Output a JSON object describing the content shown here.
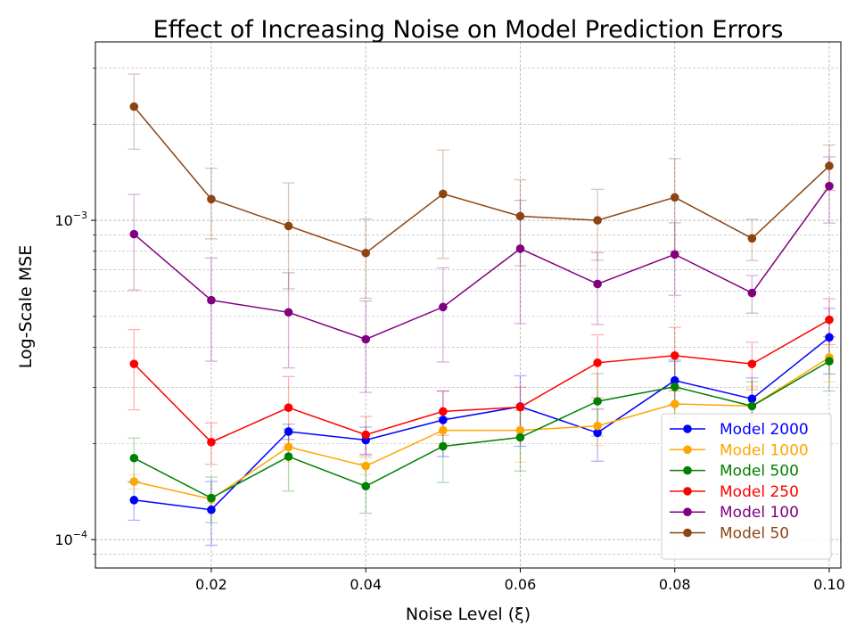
{
  "chart_data": {
    "type": "line",
    "title": "Effect of Increasing Noise on Model Prediction Errors",
    "xlabel": "Noise Level (ξ)",
    "ylabel": "Log-Scale MSE",
    "yscale": "log",
    "xlim": [
      0.005,
      0.1015
    ],
    "ylim": [
      8.15e-05,
      0.00362
    ],
    "xticks": [
      0.02,
      0.04,
      0.06,
      0.08,
      0.1
    ],
    "xtick_labels": [
      "0.02",
      "0.04",
      "0.06",
      "0.08",
      "0.10"
    ],
    "ytick_major": [
      0.0001,
      0.001
    ],
    "ytick_labels": [
      {
        "base": "10",
        "exp": "−4"
      },
      {
        "base": "10",
        "exp": "−3"
      }
    ],
    "grid": true,
    "legend_position": "lower right",
    "x": [
      0.01,
      0.02,
      0.03,
      0.04,
      0.05,
      0.06,
      0.07,
      0.08,
      0.09,
      0.1
    ],
    "series": [
      {
        "name": "Model 2000",
        "color": "#0000ff",
        "values": [
          0.000133,
          0.000124,
          0.000218,
          0.000205,
          0.000237,
          0.000261,
          0.000216,
          0.000315,
          0.000276,
          0.00043
        ],
        "errors": [
          1.8e-05,
          2.8e-05,
          1.2e-05,
          2e-05,
          5.5e-05,
          6.5e-05,
          4e-05,
          5e-05,
          4.5e-05,
          0.0001
        ]
      },
      {
        "name": "Model 1000",
        "color": "#ffa500",
        "values": [
          0.000152,
          0.000134,
          0.000195,
          0.00017,
          0.00022,
          0.00022,
          0.000227,
          0.000266,
          0.000262,
          0.000372
        ],
        "errors": [
          8e-06,
          4e-06,
          2e-05,
          1e-05,
          2e-05,
          4.5e-05,
          3e-05,
          3e-05,
          4e-05,
          6e-05
        ]
      },
      {
        "name": "Model 500",
        "color": "#008000",
        "values": [
          0.00018,
          0.000135,
          0.000182,
          0.000147,
          0.000196,
          0.000209,
          0.000271,
          0.000301,
          0.000262,
          0.000362
        ],
        "errors": [
          2.8e-05,
          2.2e-05,
          4e-05,
          2.6e-05,
          4.5e-05,
          4.5e-05,
          6e-05,
          6e-05,
          5e-05,
          7e-05
        ]
      },
      {
        "name": "Model 250",
        "color": "#ff0000",
        "values": [
          0.000355,
          0.000202,
          0.000259,
          0.000213,
          0.000252,
          0.00026,
          0.000358,
          0.000377,
          0.000355,
          0.000488
        ],
        "errors": [
          0.0001,
          3e-05,
          6.5e-05,
          3e-05,
          4e-05,
          4e-05,
          8e-05,
          8.5e-05,
          6e-05,
          8e-05
        ]
      },
      {
        "name": "Model 100",
        "color": "#800080",
        "values": [
          0.000905,
          0.000562,
          0.000515,
          0.000424,
          0.000535,
          0.000815,
          0.000632,
          0.000782,
          0.000592,
          0.00128
        ],
        "errors": [
          0.0003,
          0.0002,
          0.00017,
          0.000135,
          0.000175,
          0.00034,
          0.00016,
          0.0002,
          8e-05,
          0.0003
        ]
      },
      {
        "name": "Model 50",
        "color": "#8b4513",
        "values": [
          0.00227,
          0.001165,
          0.00096,
          0.00079,
          0.00121,
          0.00103,
          0.001,
          0.00118,
          0.000878,
          0.00148
        ],
        "errors": [
          0.0006,
          0.00029,
          0.00035,
          0.00022,
          0.00045,
          0.00031,
          0.00025,
          0.00038,
          0.00013,
          0.00024
        ]
      }
    ]
  }
}
